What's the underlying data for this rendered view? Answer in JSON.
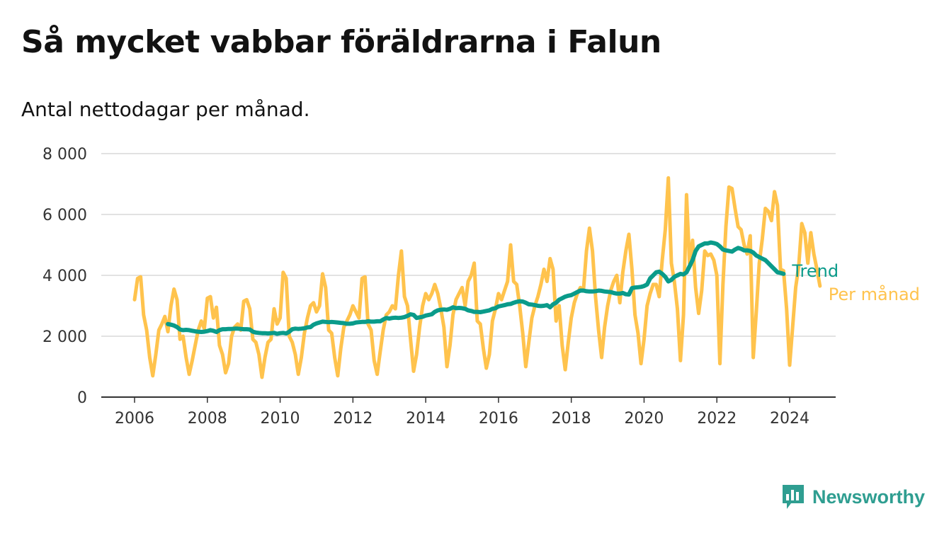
{
  "title": "Så mycket vabbar föräldrarna i Falun",
  "subtitle": "Antal nettodagar per månad.",
  "brand": {
    "name": "Newsworthy",
    "icon": "bar-chart-speech-icon",
    "color": "#2f9e91"
  },
  "chart_data": {
    "type": "line",
    "xlim": [
      2006,
      2024.5
    ],
    "ylim": [
      0,
      8000
    ],
    "x_ticks": [
      2006,
      2008,
      2010,
      2012,
      2014,
      2016,
      2018,
      2020,
      2022,
      2024
    ],
    "x_tick_labels": [
      "2006",
      "2008",
      "2010",
      "2012",
      "2014",
      "2016",
      "2018",
      "2020",
      "2022",
      "2024"
    ],
    "y_ticks": [
      0,
      2000,
      4000,
      6000,
      8000
    ],
    "y_tick_labels": [
      "0",
      "2 000",
      "4 000",
      "6 000",
      "8 000"
    ],
    "grid": true,
    "series": [
      {
        "name": "Per månad",
        "color": "#ffc34d",
        "x_start": 2006.0,
        "x_step": 0.08333,
        "values": [
          3200,
          3900,
          3950,
          2700,
          2200,
          1300,
          700,
          1400,
          2200,
          2400,
          2650,
          2150,
          3000,
          3550,
          3200,
          1900,
          2000,
          1300,
          750,
          1200,
          1700,
          2200,
          2500,
          2250,
          3250,
          3300,
          2600,
          2950,
          1700,
          1400,
          800,
          1100,
          2000,
          2300,
          2400,
          2200,
          3150,
          3200,
          2900,
          1900,
          1800,
          1400,
          650,
          1300,
          1800,
          1900,
          2900,
          2400,
          2600,
          4100,
          3900,
          2000,
          1800,
          1400,
          750,
          1300,
          2100,
          2600,
          3000,
          3100,
          2800,
          3000,
          4050,
          3600,
          2200,
          2100,
          1300,
          700,
          1600,
          2300,
          2500,
          2700,
          3000,
          2800,
          2600,
          3900,
          3950,
          2400,
          2200,
          1200,
          750,
          1500,
          2200,
          2700,
          2800,
          3000,
          2900,
          4000,
          4800,
          3300,
          3000,
          1900,
          850,
          1400,
          2300,
          3000,
          3400,
          3200,
          3400,
          3700,
          3400,
          2900,
          2300,
          1000,
          1700,
          2700,
          3200,
          3400,
          3600,
          3000,
          3800,
          4000,
          4400,
          2500,
          2400,
          1600,
          950,
          1400,
          2500,
          2900,
          3400,
          3200,
          3500,
          3800,
          5000,
          3800,
          3700,
          3000,
          2100,
          1000,
          1800,
          2600,
          3000,
          3300,
          3700,
          4200,
          3800,
          4550,
          4200,
          2500,
          3000,
          1700,
          900,
          1800,
          2600,
          3100,
          3400,
          3600,
          3500,
          4800,
          5550,
          4800,
          3300,
          2200,
          1300,
          2300,
          3000,
          3500,
          3800,
          4000,
          3100,
          4100,
          4800,
          5350,
          4200,
          2700,
          2100,
          1100,
          1900,
          3000,
          3400,
          3700,
          3700,
          3300,
          4500,
          5500,
          7200,
          4400,
          3800,
          2900,
          1200,
          2700,
          6650,
          4400,
          5150,
          3600,
          2750,
          3500,
          4800,
          4650,
          4700,
          4500,
          4000,
          1100,
          3700,
          5600,
          6900,
          6850,
          6200,
          5600,
          5500,
          5000,
          4700,
          5300,
          1300,
          2800,
          4400,
          5200,
          6200,
          6100,
          5800,
          6750,
          6300,
          4200,
          4150,
          2900,
          1050,
          2300,
          3600,
          4300,
          5700,
          5400,
          4400,
          5400,
          4700,
          4200,
          3650
        ]
      },
      {
        "name": "Trend",
        "color": "#0a9b8a",
        "x_start": 2006.9167,
        "x_step": 0.08333,
        "values": [
          2400,
          2380,
          2350,
          2300,
          2220,
          2200,
          2210,
          2200,
          2180,
          2160,
          2150,
          2140,
          2150,
          2170,
          2200,
          2180,
          2140,
          2200,
          2230,
          2230,
          2240,
          2240,
          2250,
          2250,
          2240,
          2230,
          2230,
          2220,
          2150,
          2120,
          2110,
          2100,
          2100,
          2090,
          2100,
          2110,
          2080,
          2100,
          2110,
          2090,
          2150,
          2230,
          2250,
          2240,
          2250,
          2260,
          2290,
          2300,
          2380,
          2420,
          2450,
          2480,
          2470,
          2460,
          2470,
          2460,
          2450,
          2440,
          2430,
          2410,
          2410,
          2420,
          2450,
          2460,
          2470,
          2470,
          2490,
          2480,
          2480,
          2490,
          2490,
          2550,
          2600,
          2580,
          2600,
          2610,
          2600,
          2610,
          2630,
          2670,
          2720,
          2700,
          2600,
          2620,
          2640,
          2680,
          2700,
          2720,
          2800,
          2850,
          2870,
          2880,
          2870,
          2900,
          2950,
          2920,
          2930,
          2920,
          2900,
          2850,
          2830,
          2800,
          2800,
          2790,
          2810,
          2830,
          2850,
          2900,
          2920,
          2980,
          3000,
          3020,
          3050,
          3060,
          3100,
          3130,
          3150,
          3140,
          3100,
          3050,
          3040,
          3020,
          3000,
          2990,
          3000,
          3020,
          2950,
          3050,
          3100,
          3200,
          3250,
          3300,
          3330,
          3350,
          3400,
          3450,
          3500,
          3500,
          3480,
          3470,
          3470,
          3480,
          3500,
          3490,
          3470,
          3460,
          3450,
          3420,
          3400,
          3400,
          3420,
          3380,
          3370,
          3580,
          3600,
          3610,
          3620,
          3650,
          3700,
          3900,
          4000,
          4100,
          4120,
          4050,
          3950,
          3800,
          3850,
          3950,
          4000,
          4050,
          4030,
          4100,
          4300,
          4500,
          4800,
          4950,
          5000,
          5050,
          5050,
          5080,
          5060,
          5030,
          4950,
          4850,
          4820,
          4800,
          4780,
          4850,
          4900,
          4870,
          4820,
          4820,
          4800,
          4750,
          4650,
          4600,
          4550,
          4500,
          4400,
          4300,
          4200,
          4100,
          4080,
          4050
        ]
      }
    ]
  }
}
